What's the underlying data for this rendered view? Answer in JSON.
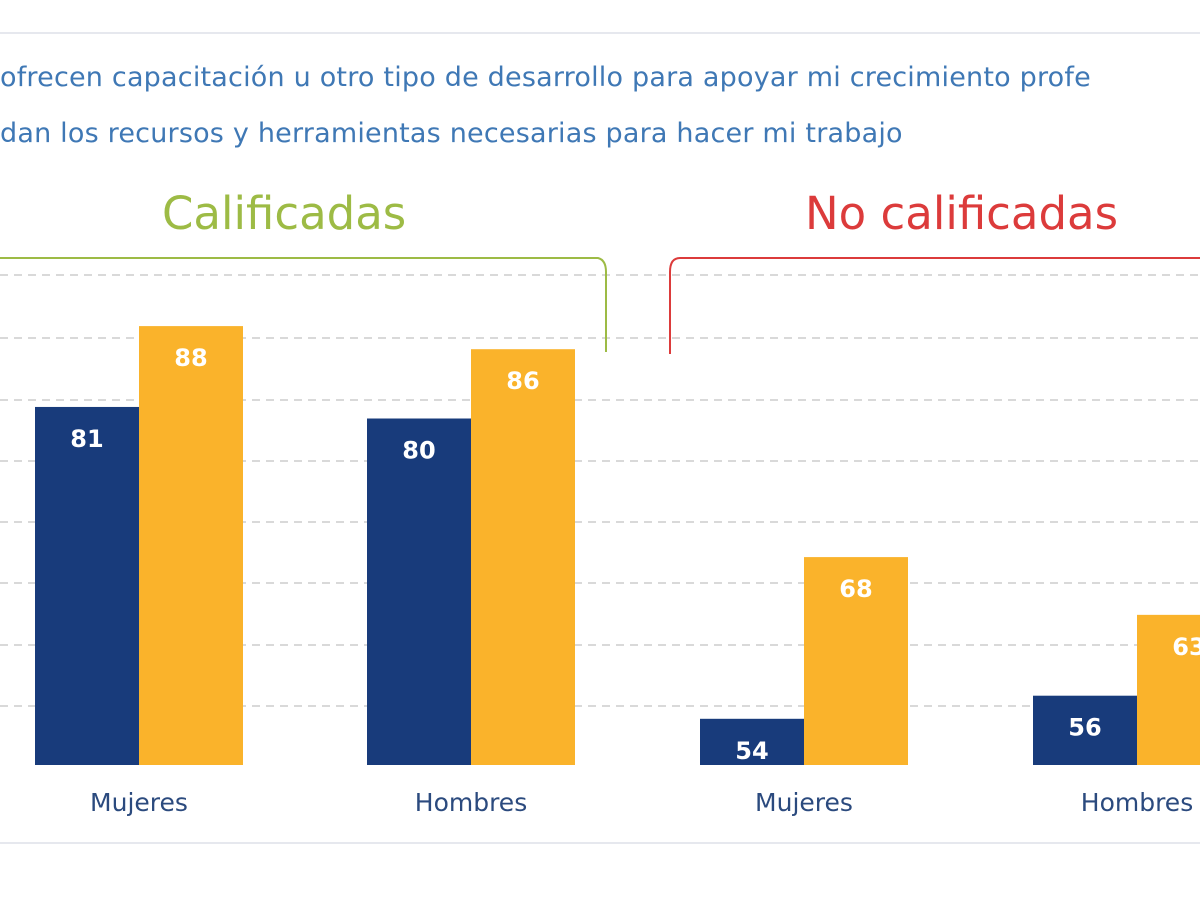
{
  "legend": {
    "series_1": "ofrecen capacitación u otro tipo  de desarrollo para apoyar mi crecimiento profe",
    "series_2": "dan los recursos y herramientas necesarias para hacer mi trabajo"
  },
  "groups": {
    "calificadas": "Calificadas",
    "no_calificadas": "No calificadas"
  },
  "colors": {
    "series_1": "#183b7b",
    "series_2": "#fab32b",
    "calificadas": "#9dbb45",
    "no_calificadas": "#dc3b3b",
    "legend_text": "#3f78b5",
    "category_text": "#2b4a7e"
  },
  "chart_data": {
    "type": "bar",
    "title": "",
    "xlabel": "",
    "ylabel": "",
    "ylim": [
      50,
      90
    ],
    "grid": true,
    "groups": [
      "Calificadas",
      "Calificadas",
      "No calificadas",
      "No calificadas"
    ],
    "categories": [
      "Mujeres",
      "Hombres",
      "Mujeres",
      "Hombres"
    ],
    "series": [
      {
        "values": [
          81,
          80,
          54,
          56
        ],
        "labels": [
          "81",
          "80",
          "54",
          "56"
        ]
      },
      {
        "values": [
          88,
          86,
          68,
          63
        ],
        "labels": [
          "88",
          "86",
          "68",
          "63"
        ]
      }
    ]
  }
}
